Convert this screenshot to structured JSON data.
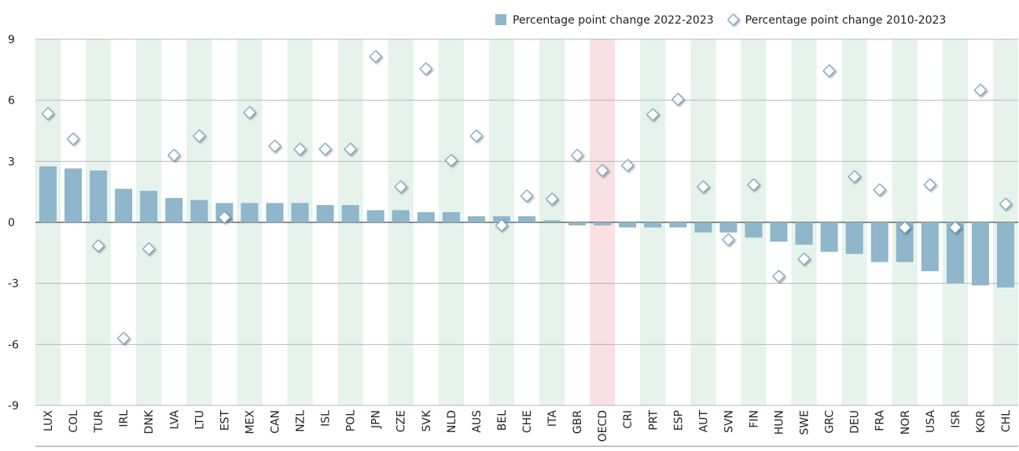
{
  "chart_data": {
    "type": "bar-diamond",
    "categories": [
      "LUX",
      "COL",
      "TUR",
      "IRL",
      "DNK",
      "LVA",
      "LTU",
      "EST",
      "MEX",
      "CAN",
      "NZL",
      "ISL",
      "POL",
      "JPN",
      "CZE",
      "SVK",
      "NLD",
      "AUS",
      "BEL",
      "CHE",
      "ITA",
      "GBR",
      "OECD",
      "CRI",
      "PRT",
      "ESP",
      "AUT",
      "SVN",
      "FIN",
      "HUN",
      "SWE",
      "GRC",
      "DEU",
      "FRA",
      "NOR",
      "USA",
      "ISR",
      "KOR",
      "CHL"
    ],
    "series": [
      {
        "name": "Percentage point change 2022-2023",
        "color": "#8fb6ca",
        "mark": "bar",
        "values": [
          2.75,
          2.65,
          2.55,
          1.65,
          1.55,
          1.2,
          1.1,
          0.95,
          0.95,
          0.95,
          0.95,
          0.85,
          0.85,
          0.6,
          0.6,
          0.5,
          0.5,
          0.3,
          0.3,
          0.3,
          0.1,
          -0.15,
          -0.15,
          -0.25,
          -0.25,
          -0.25,
          -0.5,
          -0.5,
          -0.75,
          -0.95,
          -1.1,
          -1.45,
          -1.55,
          -1.95,
          -1.95,
          -2.4,
          -3.0,
          -3.1,
          -3.2
        ]
      },
      {
        "name": "Percentage point change 2010-2023",
        "color": "#7fa8c0",
        "mark": "diamond",
        "values": [
          5.35,
          4.1,
          -1.15,
          -5.7,
          -1.3,
          3.3,
          4.25,
          0.25,
          5.4,
          3.75,
          3.6,
          3.6,
          3.6,
          8.15,
          1.75,
          7.55,
          3.05,
          4.25,
          -0.15,
          1.3,
          1.15,
          3.3,
          2.55,
          2.8,
          5.3,
          6.05,
          1.75,
          -0.85,
          1.85,
          -2.65,
          -1.8,
          7.45,
          2.25,
          1.6,
          -0.25,
          1.85,
          -0.25,
          6.5,
          0.9
        ]
      }
    ],
    "ylim": [
      -9,
      9
    ],
    "yticks": [
      9,
      6,
      3,
      0,
      -3,
      -6,
      -9
    ],
    "grid": true,
    "band_color": "#e6f3ec",
    "highlight_category": "OECD",
    "highlight_color": "#f8e0e3",
    "legend": "top-right"
  }
}
